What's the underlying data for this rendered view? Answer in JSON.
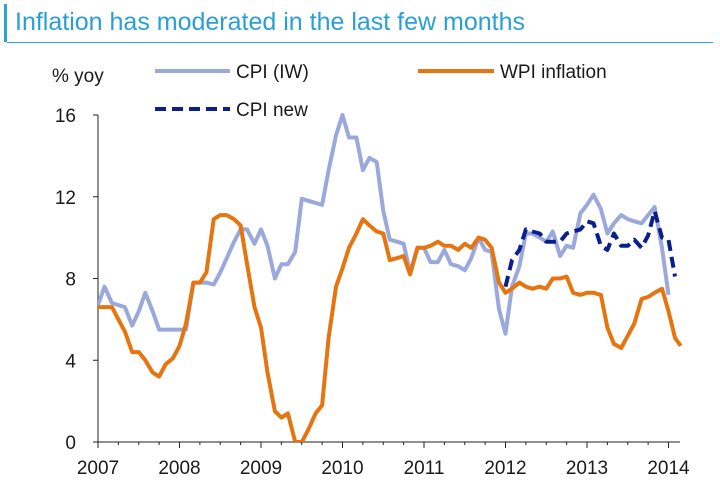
{
  "title": "Inflation has moderated in the last few months",
  "colors": {
    "title": "#2a9fd6",
    "cpi_iw": "#9aa8db",
    "wpi": "#e6740f",
    "cpi_new": "#0a1f8f",
    "axis": "#222222"
  },
  "chart_data": {
    "type": "line",
    "title": "Inflation has moderated in the last few months",
    "ylabel": "% yoy",
    "xlabel": "",
    "ylim": [
      0,
      16
    ],
    "xlim": [
      2007.0,
      2014.15
    ],
    "yticks": [
      0,
      4,
      8,
      12,
      16
    ],
    "xticks": [
      2007,
      2008,
      2009,
      2010,
      2011,
      2012,
      2013,
      2014
    ],
    "grid": false,
    "legend_placement": "top",
    "series": [
      {
        "name": "CPI (IW)",
        "style": "solid",
        "color": "#9aa8db",
        "points": [
          [
            2007.0,
            6.7
          ],
          [
            2007.08,
            7.6
          ],
          [
            2007.17,
            6.8
          ],
          [
            2007.25,
            6.7
          ],
          [
            2007.33,
            6.6
          ],
          [
            2007.42,
            5.7
          ],
          [
            2007.5,
            6.4
          ],
          [
            2007.58,
            7.3
          ],
          [
            2007.67,
            6.4
          ],
          [
            2007.75,
            5.5
          ],
          [
            2007.83,
            5.5
          ],
          [
            2007.92,
            5.5
          ],
          [
            2008.0,
            5.5
          ],
          [
            2008.08,
            5.5
          ],
          [
            2008.17,
            7.8
          ],
          [
            2008.25,
            7.8
          ],
          [
            2008.33,
            7.8
          ],
          [
            2008.42,
            7.7
          ],
          [
            2008.5,
            8.3
          ],
          [
            2008.58,
            9.0
          ],
          [
            2008.67,
            9.8
          ],
          [
            2008.75,
            10.4
          ],
          [
            2008.83,
            10.4
          ],
          [
            2008.92,
            9.7
          ],
          [
            2009.0,
            10.4
          ],
          [
            2009.08,
            9.6
          ],
          [
            2009.17,
            8.0
          ],
          [
            2009.25,
            8.7
          ],
          [
            2009.33,
            8.7
          ],
          [
            2009.42,
            9.3
          ],
          [
            2009.5,
            11.9
          ],
          [
            2009.58,
            11.8
          ],
          [
            2009.67,
            11.7
          ],
          [
            2009.75,
            11.6
          ],
          [
            2009.83,
            13.3
          ],
          [
            2009.92,
            15.0
          ],
          [
            2010.0,
            16.0
          ],
          [
            2010.08,
            14.9
          ],
          [
            2010.17,
            14.9
          ],
          [
            2010.25,
            13.3
          ],
          [
            2010.33,
            13.9
          ],
          [
            2010.42,
            13.7
          ],
          [
            2010.5,
            11.3
          ],
          [
            2010.58,
            9.9
          ],
          [
            2010.67,
            9.8
          ],
          [
            2010.75,
            9.7
          ],
          [
            2010.83,
            8.3
          ],
          [
            2010.92,
            9.5
          ],
          [
            2011.0,
            9.5
          ],
          [
            2011.08,
            8.8
          ],
          [
            2011.17,
            8.8
          ],
          [
            2011.25,
            9.4
          ],
          [
            2011.33,
            8.7
          ],
          [
            2011.42,
            8.6
          ],
          [
            2011.5,
            8.4
          ],
          [
            2011.58,
            9.0
          ],
          [
            2011.67,
            10.0
          ],
          [
            2011.75,
            9.4
          ],
          [
            2011.83,
            9.3
          ],
          [
            2011.92,
            6.5
          ],
          [
            2012.0,
            5.3
          ],
          [
            2012.08,
            7.6
          ],
          [
            2012.17,
            8.6
          ],
          [
            2012.25,
            10.2
          ],
          [
            2012.33,
            10.2
          ],
          [
            2012.42,
            10.0
          ],
          [
            2012.5,
            9.8
          ],
          [
            2012.58,
            10.3
          ],
          [
            2012.67,
            9.1
          ],
          [
            2012.75,
            9.6
          ],
          [
            2012.83,
            9.5
          ],
          [
            2012.92,
            11.2
          ],
          [
            2013.0,
            11.6
          ],
          [
            2013.08,
            12.1
          ],
          [
            2013.17,
            11.4
          ],
          [
            2013.25,
            10.2
          ],
          [
            2013.33,
            10.7
          ],
          [
            2013.42,
            11.1
          ],
          [
            2013.5,
            10.9
          ],
          [
            2013.58,
            10.8
          ],
          [
            2013.67,
            10.7
          ],
          [
            2013.75,
            11.1
          ],
          [
            2013.83,
            11.5
          ],
          [
            2013.92,
            9.5
          ],
          [
            2014.0,
            7.2
          ]
        ]
      },
      {
        "name": "WPI inflation",
        "style": "solid",
        "color": "#e6740f",
        "points": [
          [
            2007.0,
            6.6
          ],
          [
            2007.08,
            6.6
          ],
          [
            2007.17,
            6.6
          ],
          [
            2007.25,
            6.0
          ],
          [
            2007.33,
            5.4
          ],
          [
            2007.42,
            4.4
          ],
          [
            2007.5,
            4.4
          ],
          [
            2007.58,
            4.0
          ],
          [
            2007.67,
            3.4
          ],
          [
            2007.75,
            3.2
          ],
          [
            2007.83,
            3.8
          ],
          [
            2007.92,
            4.1
          ],
          [
            2008.0,
            4.7
          ],
          [
            2008.08,
            5.8
          ],
          [
            2008.17,
            7.8
          ],
          [
            2008.25,
            7.8
          ],
          [
            2008.33,
            8.3
          ],
          [
            2008.42,
            10.9
          ],
          [
            2008.5,
            11.1
          ],
          [
            2008.58,
            11.1
          ],
          [
            2008.67,
            10.9
          ],
          [
            2008.75,
            10.6
          ],
          [
            2008.83,
            8.7
          ],
          [
            2008.92,
            6.6
          ],
          [
            2009.0,
            5.6
          ],
          [
            2009.08,
            3.4
          ],
          [
            2009.17,
            1.5
          ],
          [
            2009.25,
            1.2
          ],
          [
            2009.33,
            1.4
          ],
          [
            2009.42,
            0.0
          ],
          [
            2009.5,
            0.0
          ],
          [
            2009.58,
            0.6
          ],
          [
            2009.67,
            1.4
          ],
          [
            2009.75,
            1.8
          ],
          [
            2009.83,
            5.1
          ],
          [
            2009.92,
            7.6
          ],
          [
            2010.0,
            8.5
          ],
          [
            2010.08,
            9.5
          ],
          [
            2010.17,
            10.2
          ],
          [
            2010.25,
            10.9
          ],
          [
            2010.33,
            10.6
          ],
          [
            2010.42,
            10.3
          ],
          [
            2010.5,
            10.2
          ],
          [
            2010.58,
            8.9
          ],
          [
            2010.67,
            9.0
          ],
          [
            2010.75,
            9.1
          ],
          [
            2010.83,
            8.2
          ],
          [
            2010.92,
            9.5
          ],
          [
            2011.0,
            9.5
          ],
          [
            2011.08,
            9.6
          ],
          [
            2011.17,
            9.8
          ],
          [
            2011.25,
            9.6
          ],
          [
            2011.33,
            9.6
          ],
          [
            2011.42,
            9.4
          ],
          [
            2011.5,
            9.7
          ],
          [
            2011.58,
            9.5
          ],
          [
            2011.67,
            10.0
          ],
          [
            2011.75,
            9.9
          ],
          [
            2011.83,
            9.5
          ],
          [
            2011.92,
            7.8
          ],
          [
            2012.0,
            7.3
          ],
          [
            2012.08,
            7.5
          ],
          [
            2012.17,
            7.8
          ],
          [
            2012.25,
            7.6
          ],
          [
            2012.33,
            7.5
          ],
          [
            2012.42,
            7.6
          ],
          [
            2012.5,
            7.5
          ],
          [
            2012.58,
            8.0
          ],
          [
            2012.67,
            8.0
          ],
          [
            2012.75,
            8.1
          ],
          [
            2012.83,
            7.3
          ],
          [
            2012.92,
            7.2
          ],
          [
            2013.0,
            7.3
          ],
          [
            2013.08,
            7.3
          ],
          [
            2013.17,
            7.2
          ],
          [
            2013.25,
            5.6
          ],
          [
            2013.33,
            4.8
          ],
          [
            2013.42,
            4.6
          ],
          [
            2013.5,
            5.2
          ],
          [
            2013.58,
            5.8
          ],
          [
            2013.67,
            7.0
          ],
          [
            2013.75,
            7.1
          ],
          [
            2013.83,
            7.3
          ],
          [
            2013.92,
            7.5
          ],
          [
            2014.0,
            6.4
          ],
          [
            2014.08,
            5.1
          ],
          [
            2014.15,
            4.7
          ]
        ]
      },
      {
        "name": "CPI new",
        "style": "dashed",
        "color": "#0a1f8f",
        "points": [
          [
            2012.0,
            7.6
          ],
          [
            2012.08,
            8.9
          ],
          [
            2012.17,
            9.4
          ],
          [
            2012.25,
            10.4
          ],
          [
            2012.33,
            10.3
          ],
          [
            2012.42,
            10.2
          ],
          [
            2012.5,
            9.8
          ],
          [
            2012.58,
            9.8
          ],
          [
            2012.67,
            9.8
          ],
          [
            2012.75,
            10.2
          ],
          [
            2012.83,
            10.3
          ],
          [
            2012.92,
            10.4
          ],
          [
            2013.0,
            10.8
          ],
          [
            2013.08,
            10.7
          ],
          [
            2013.17,
            9.6
          ],
          [
            2013.25,
            9.4
          ],
          [
            2013.33,
            10.2
          ],
          [
            2013.42,
            9.6
          ],
          [
            2013.5,
            9.6
          ],
          [
            2013.58,
            9.9
          ],
          [
            2013.67,
            9.5
          ],
          [
            2013.75,
            10.1
          ],
          [
            2013.83,
            11.3
          ],
          [
            2013.92,
            10.0
          ],
          [
            2014.0,
            9.9
          ],
          [
            2014.08,
            8.1
          ]
        ]
      }
    ]
  }
}
